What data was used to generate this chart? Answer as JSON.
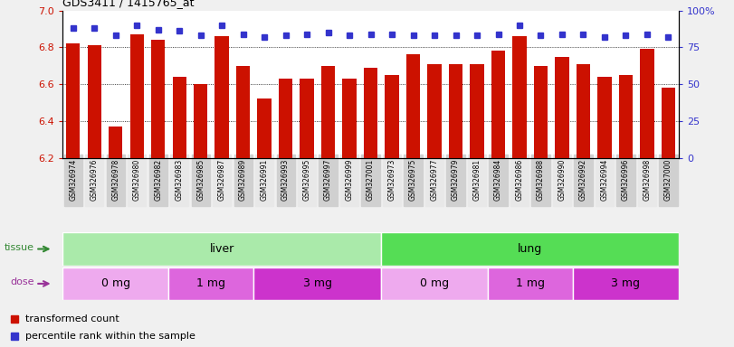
{
  "title": "GDS3411 / 1415765_at",
  "samples": [
    "GSM326974",
    "GSM326976",
    "GSM326978",
    "GSM326980",
    "GSM326982",
    "GSM326983",
    "GSM326985",
    "GSM326987",
    "GSM326989",
    "GSM326991",
    "GSM326993",
    "GSM326995",
    "GSM326997",
    "GSM326999",
    "GSM327001",
    "GSM326973",
    "GSM326975",
    "GSM326977",
    "GSM326979",
    "GSM326981",
    "GSM326984",
    "GSM326986",
    "GSM326988",
    "GSM326990",
    "GSM326992",
    "GSM326994",
    "GSM326996",
    "GSM326998",
    "GSM327000"
  ],
  "bar_values": [
    6.82,
    6.81,
    6.37,
    6.87,
    6.84,
    6.64,
    6.6,
    6.86,
    6.7,
    6.52,
    6.63,
    6.63,
    6.7,
    6.63,
    6.69,
    6.65,
    6.76,
    6.71,
    6.71,
    6.71,
    6.78,
    6.86,
    6.7,
    6.75,
    6.71,
    6.64,
    6.65,
    6.79,
    6.58
  ],
  "percentile_values": [
    88,
    88,
    83,
    90,
    87,
    86,
    83,
    90,
    84,
    82,
    83,
    84,
    85,
    83,
    84,
    84,
    83,
    83,
    83,
    83,
    84,
    90,
    83,
    84,
    84,
    82,
    83,
    84,
    82
  ],
  "bar_color": "#cc1100",
  "dot_color": "#3333cc",
  "ylim_left": [
    6.2,
    7.0
  ],
  "ylim_right": [
    0,
    100
  ],
  "yticks_left": [
    6.2,
    6.4,
    6.6,
    6.8,
    7.0
  ],
  "yticks_right": [
    0,
    25,
    50,
    75,
    100
  ],
  "ytick_labels_right": [
    "0",
    "25",
    "50",
    "75",
    "100%"
  ],
  "gridlines": [
    6.4,
    6.6,
    6.8
  ],
  "tissue_groups": [
    {
      "label": "liver",
      "start": 0,
      "end": 15,
      "color": "#aaeaaa"
    },
    {
      "label": "lung",
      "start": 15,
      "end": 29,
      "color": "#55dd55"
    }
  ],
  "dose_colors": [
    "#eeaaee",
    "#dd66dd",
    "#cc33cc",
    "#eeaaee",
    "#dd66dd",
    "#cc33cc"
  ],
  "dose_groups": [
    {
      "label": "0 mg",
      "start": 0,
      "end": 5
    },
    {
      "label": "1 mg",
      "start": 5,
      "end": 9
    },
    {
      "label": "3 mg",
      "start": 9,
      "end": 15
    },
    {
      "label": "0 mg",
      "start": 15,
      "end": 20
    },
    {
      "label": "1 mg",
      "start": 20,
      "end": 24
    },
    {
      "label": "3 mg",
      "start": 24,
      "end": 29
    }
  ],
  "legend_items": [
    {
      "label": "transformed count",
      "color": "#cc1100"
    },
    {
      "label": "percentile rank within the sample",
      "color": "#3333cc"
    }
  ],
  "tissue_label_color": "#338833",
  "dose_label_color": "#993399",
  "fig_bg_color": "#f0f0f0",
  "plot_bg_color": "#ffffff",
  "xtick_bg_color": "#d0d0d0"
}
